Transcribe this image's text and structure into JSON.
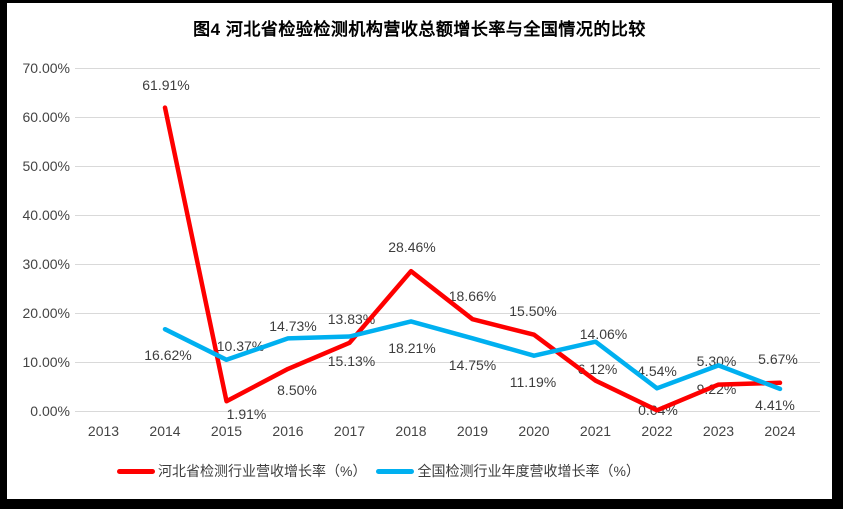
{
  "title": "图4  河北省检验检测机构营收总额增长率与全国情况的比较",
  "colors": {
    "hebei_line": "#fe0000",
    "national_line": "#00b0f0",
    "gridline": "#d9d9d9",
    "tick_text": "#444444",
    "data_label_text": "#3d3d3d",
    "title_text": "#000000",
    "frame": "#000000",
    "card_bg": "#ffffff"
  },
  "chart_data": {
    "type": "line",
    "title": "图4  河北省检验检测机构营收总额增长率与全国情况的比较",
    "categories": [
      "2013",
      "2014",
      "2015",
      "2016",
      "2017",
      "2018",
      "2019",
      "2020",
      "2021",
      "2022",
      "2023",
      "2024"
    ],
    "y_ticks": [
      "70.00%",
      "60.00%",
      "50.00%",
      "40.00%",
      "30.00%",
      "20.00%",
      "10.00%",
      "0.00%"
    ],
    "ylim": [
      0,
      70
    ],
    "grid": true,
    "legend_position": "bottom",
    "series": [
      {
        "name": "河北省检测行业营收增长率（%）",
        "color": "#fe0000",
        "x": [
          "2014",
          "2015",
          "2016",
          "2017",
          "2018",
          "2019",
          "2020",
          "2021",
          "2022",
          "2023",
          "2024"
        ],
        "values": [
          61.91,
          1.91,
          8.5,
          13.83,
          28.46,
          18.66,
          15.5,
          6.12,
          0.04,
          5.3,
          5.67
        ],
        "labels": [
          "61.91%",
          "1.91%",
          "8.50%",
          "13.83%",
          "28.46%",
          "18.66%",
          "15.50%",
          "6.12%",
          "0.04%",
          "5.30%",
          "5.67%"
        ]
      },
      {
        "name": "全国检测行业年度营收增长率（%）",
        "color": "#00b0f0",
        "x": [
          "2014",
          "2015",
          "2016",
          "2017",
          "2018",
          "2019",
          "2020",
          "2021",
          "2022",
          "2023",
          "2024"
        ],
        "values": [
          16.62,
          10.37,
          14.73,
          15.13,
          18.21,
          14.75,
          11.19,
          14.06,
          4.54,
          9.22,
          4.41
        ],
        "labels": [
          "16.62%",
          "10.37%",
          "14.73%",
          "15.13%",
          "18.21%",
          "14.75%",
          "11.19%",
          "14.06%",
          "4.54%",
          "9.22%",
          "4.41%"
        ]
      }
    ]
  }
}
